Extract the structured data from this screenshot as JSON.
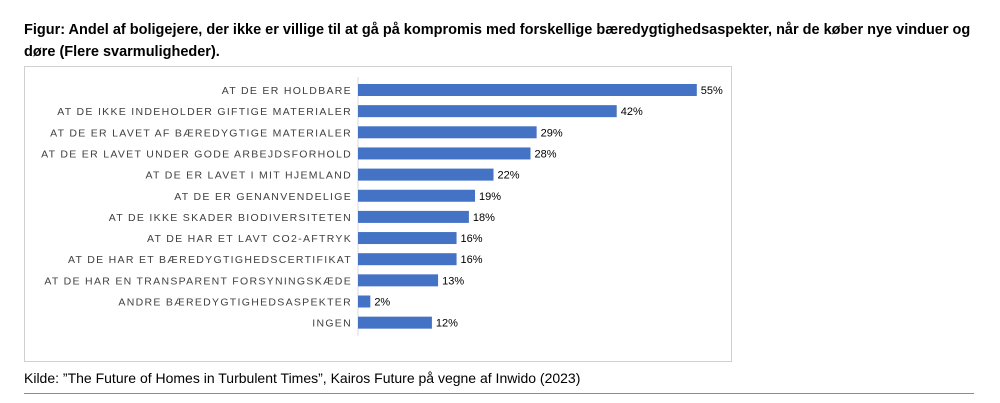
{
  "figure": {
    "title": "Figur: Andel af boligejere, der ikke er villige til at gå på kompromis med forskellige bæredygtighedsaspekter, når de køber nye vinduer og døre (Flere svarmuligheder).",
    "source": "Kilde: ”The Future of Homes in Turbulent Times”, Kairos Future på vegne af Inwido (2023)"
  },
  "chart_data": {
    "type": "bar",
    "orientation": "horizontal",
    "title": "",
    "xlabel": "",
    "ylabel": "",
    "xlim": [
      0,
      55
    ],
    "grid": false,
    "legend": "none",
    "bar_color": "#4472C4",
    "categories": [
      "AT DE ER HOLDBARE",
      "AT DE IKKE INDEHOLDER GIFTIGE MATERIALER",
      "AT DE ER LAVET AF BÆREDYGTIGE MATERIALER",
      "AT DE ER LAVET UNDER GODE ARBEJDSFORHOLD",
      "AT DE ER LAVET I MIT HJEMLAND",
      "AT DE ER GENANVENDELIGE",
      "AT DE IKKE SKADER BIODIVERSITETEN",
      "AT DE HAR ET LAVT CO2-AFTRYK",
      "AT DE HAR ET BÆREDYGTIGHEDSCERTIFIKAT",
      "AT DE HAR EN TRANSPARENT FORSYNINGSKÆDE",
      "ANDRE BÆREDYGTIGHEDSASPEKTER",
      "INGEN"
    ],
    "values": [
      55,
      42,
      29,
      28,
      22,
      19,
      18,
      16,
      16,
      13,
      2,
      12
    ],
    "value_labels": [
      "55%",
      "42%",
      "29%",
      "28%",
      "22%",
      "19%",
      "18%",
      "16%",
      "16%",
      "13%",
      "2%",
      "12%"
    ]
  }
}
